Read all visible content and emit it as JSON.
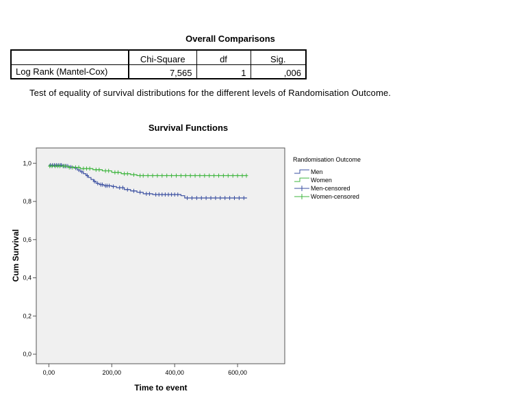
{
  "table": {
    "title": "Overall Comparisons",
    "headers": [
      "",
      "Chi-Square",
      "df",
      "Sig."
    ],
    "row": {
      "label": "Log Rank (Mantel-Cox)",
      "chi_square": "7,565",
      "df": "1",
      "sig": ",006"
    },
    "footnote": "Test of equality of survival distributions for the different levels of Randomisation Outcome."
  },
  "chart_data": {
    "type": "line",
    "step": true,
    "title": "Survival Functions",
    "xlabel": "Time to event",
    "ylabel": "Cum Survival",
    "xlim": [
      -40,
      750
    ],
    "ylim": [
      -0.05,
      1.08
    ],
    "x_ticks": [
      0,
      200,
      400,
      600
    ],
    "x_tick_labels": [
      "0,00",
      "200,00",
      "400,00",
      "600,00"
    ],
    "y_ticks": [
      0,
      0.2,
      0.4,
      0.6,
      0.8,
      1.0
    ],
    "y_tick_labels": [
      "0,0",
      "0,2",
      "0,4",
      "0,6",
      "0,8",
      "1,0"
    ],
    "legend": {
      "title": "Randomisation Outcome",
      "position": "right",
      "entries": [
        "Men",
        "Women",
        "Men-censored",
        "Women-censored"
      ]
    },
    "colors": {
      "men": "#3a4fa0",
      "women": "#3cb43c",
      "plot_bg": "#f0f0f0",
      "axis": "#555555"
    },
    "series": [
      {
        "name": "Men",
        "steps": [
          [
            0,
            0.99
          ],
          [
            45,
            0.985
          ],
          [
            65,
            0.98
          ],
          [
            80,
            0.975
          ],
          [
            90,
            0.965
          ],
          [
            100,
            0.955
          ],
          [
            110,
            0.945
          ],
          [
            118,
            0.935
          ],
          [
            126,
            0.925
          ],
          [
            134,
            0.915
          ],
          [
            142,
            0.905
          ],
          [
            150,
            0.895
          ],
          [
            160,
            0.888
          ],
          [
            175,
            0.882
          ],
          [
            200,
            0.878
          ],
          [
            215,
            0.872
          ],
          [
            240,
            0.862
          ],
          [
            260,
            0.855
          ],
          [
            280,
            0.848
          ],
          [
            300,
            0.84
          ],
          [
            330,
            0.836
          ],
          [
            420,
            0.83
          ],
          [
            432,
            0.818
          ],
          [
            630,
            0.818
          ]
        ],
        "censored": [
          5,
          12,
          18,
          24,
          30,
          36,
          40,
          48,
          55,
          60,
          70,
          85,
          95,
          105,
          122,
          145,
          155,
          165,
          170,
          180,
          185,
          192,
          205,
          225,
          235,
          250,
          270,
          290,
          310,
          320,
          340,
          350,
          360,
          370,
          380,
          390,
          400,
          410,
          440,
          455,
          470,
          485,
          500,
          515,
          530,
          545,
          560,
          575,
          590,
          605,
          620
        ]
      },
      {
        "name": "Women",
        "steps": [
          [
            0,
            0.985
          ],
          [
            60,
            0.978
          ],
          [
            100,
            0.972
          ],
          [
            140,
            0.966
          ],
          [
            170,
            0.96
          ],
          [
            200,
            0.952
          ],
          [
            230,
            0.945
          ],
          [
            260,
            0.94
          ],
          [
            280,
            0.935
          ],
          [
            630,
            0.935
          ]
        ],
        "censored": [
          3,
          10,
          20,
          28,
          35,
          45,
          52,
          65,
          75,
          85,
          95,
          110,
          120,
          130,
          150,
          160,
          180,
          190,
          210,
          220,
          240,
          250,
          270,
          290,
          300,
          315,
          330,
          345,
          360,
          375,
          390,
          405,
          420,
          435,
          450,
          465,
          480,
          495,
          510,
          525,
          540,
          555,
          570,
          585,
          600,
          615,
          628
        ]
      }
    ]
  }
}
